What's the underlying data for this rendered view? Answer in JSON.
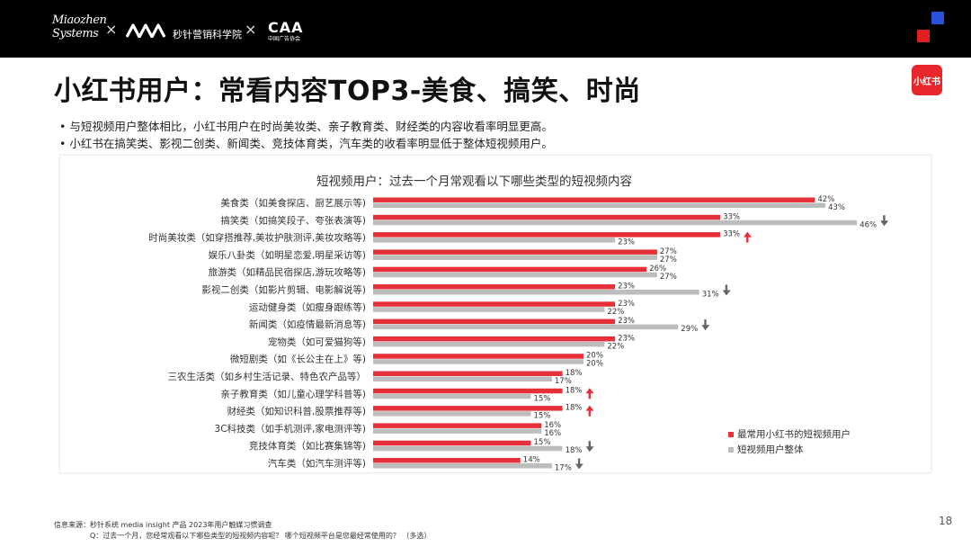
{
  "header": {
    "logo_text_line1": "Miaozhen",
    "logo_text_line2": "Systems",
    "separator": "×",
    "partner_name": "秒针营销科学院",
    "partner2_big": "CAA",
    "partner2_small": "中国广告协会"
  },
  "page_title": "小红书用户：常看内容TOP3-美食、搞笑、时尚",
  "badge": "小红书",
  "bullets": [
    "• 与短视频用户整体相比，小红书用户在时尚美妆类、亲子教育类、财经类的内容收看率明显更高。",
    "• 小红书在搞笑类、影视二创类、新闻类、竞技体育类，汽车类的收看率明显低于整体短视频用户。"
  ],
  "chart_data": {
    "type": "bar",
    "orientation": "horizontal",
    "title": "短视频用户：过去一个月常观看以下哪些类型的短视频内容",
    "categories": [
      "美食类（如美食探店、厨艺展示等)",
      "搞笑类（如搞笑段子、夸张表演等)",
      "时尚美妆类（如穿搭推荐,美妆护肤测评,美妆攻略等)",
      "娱乐八卦类（如明星恋爱,明星采访等)",
      "旅游类（如精品民宿探店,游玩攻略等)",
      "影视二创类（如影片剪辑、电影解说等)",
      "运动健身类（如瘦身跟练等)",
      "新闻类（如疫情最新消息等)",
      "宠物类（如可爱猫狗等)",
      "微短剧类（如《长公主在上》等)",
      "三农生活类（如乡村生活记录、特色农产品等）",
      "亲子教育类（如儿童心理学科普等)",
      "财经类（如知识科普,股票推荐等)",
      "3C科技类（如手机测评,家电测评等)",
      "竞技体育类（如比赛集锦等)",
      "汽车类（如汽车测评等)"
    ],
    "series": [
      {
        "name": "最常用小红书的短视频用户",
        "color": "#e5303a",
        "values": [
          42,
          33,
          33,
          27,
          26,
          23,
          23,
          23,
          23,
          20,
          18,
          18,
          18,
          16,
          15,
          14
        ]
      },
      {
        "name": "短视频用户整体",
        "color": "#bdbdbd",
        "values": [
          43,
          46,
          23,
          27,
          27,
          31,
          22,
          29,
          22,
          20,
          17,
          15,
          15,
          16,
          18,
          17
        ]
      }
    ],
    "value_suffix": "%",
    "markers": [
      "",
      "down",
      "up",
      "",
      "",
      "down",
      "",
      "down",
      "",
      "",
      "",
      "up",
      "up",
      "",
      "down",
      "down"
    ],
    "marker_colors": {
      "up": "#e5303a",
      "down": "#666666"
    },
    "xlim": [
      0,
      50
    ],
    "legend_position": "bottom-right",
    "grid": false
  },
  "footer": {
    "source": "信息来源：秒针系统 media insight 产品 2023年用户触媒习惯调查",
    "question": "Q：过去一个月，您经常观看以下哪些类型的短视频内容呢？ 哪个短视频平台是您最经常使用的？ （多选）"
  },
  "page_number": "18"
}
